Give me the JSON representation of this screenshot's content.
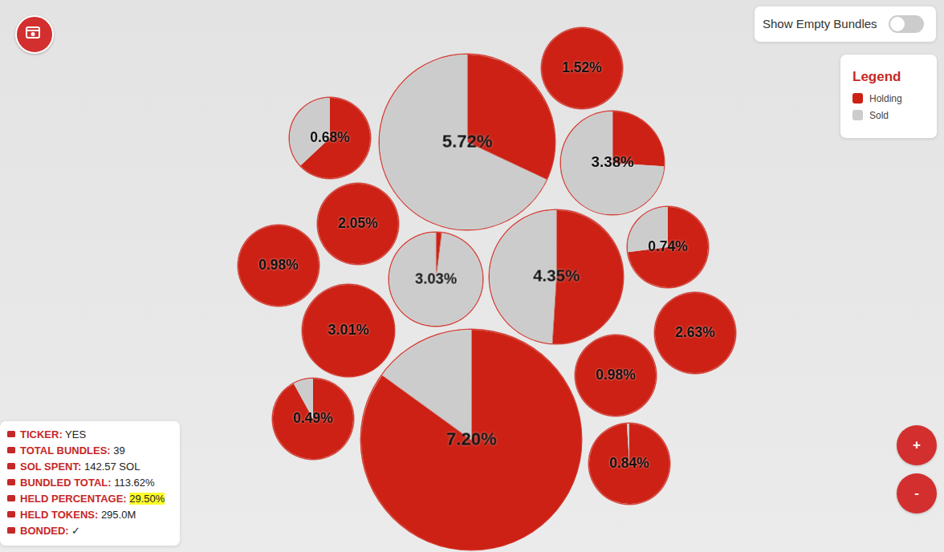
{
  "chart_data": {
    "type": "bubble_pie",
    "values": [
      7.2,
      5.72,
      4.35,
      3.38,
      3.03,
      3.01,
      2.63,
      2.05,
      1.52,
      0.98,
      0.98,
      0.84,
      0.74,
      0.68,
      0.49
    ],
    "value_labels": [
      "7.20%",
      "5.72%",
      "4.35%",
      "3.38%",
      "3.03%",
      "3.01%",
      "2.63%",
      "2.05%",
      "1.52%",
      "0.98%",
      "0.98%",
      "0.84%",
      "0.74%",
      "0.68%",
      "0.49%"
    ],
    "data_labels": true,
    "series": [
      {
        "name": "Holding",
        "color": "#cc2114",
        "values": [
          85,
          32,
          51,
          26,
          2,
          100,
          100,
          100,
          100,
          100,
          100,
          99,
          73,
          63,
          92
        ]
      },
      {
        "name": "Sold",
        "color": "#cccccc",
        "values": [
          15,
          68,
          49,
          74,
          98,
          0,
          0,
          0,
          0,
          0,
          0,
          1,
          27,
          37,
          8
        ]
      }
    ],
    "legend": "top-right"
  },
  "legend_box": {
    "title": "Legend"
  },
  "toggle": {
    "label": "Show Empty Bundles",
    "on": false
  },
  "stats": [
    {
      "label": "TICKER:",
      "value": "YES"
    },
    {
      "label": "TOTAL BUNDLES:",
      "value": "39"
    },
    {
      "label": "SOL SPENT:",
      "value": "142.57 SOL"
    },
    {
      "label": "BUNDLED TOTAL:",
      "value": "113.62%"
    },
    {
      "label": "HELD PERCENTAGE:",
      "value": "29.50%",
      "highlight": true
    },
    {
      "label": "HELD TOKENS:",
      "value": "295.0M"
    },
    {
      "label": "BONDED:",
      "value": "✓"
    }
  ],
  "zoom_buttons": [
    "+",
    "-"
  ]
}
